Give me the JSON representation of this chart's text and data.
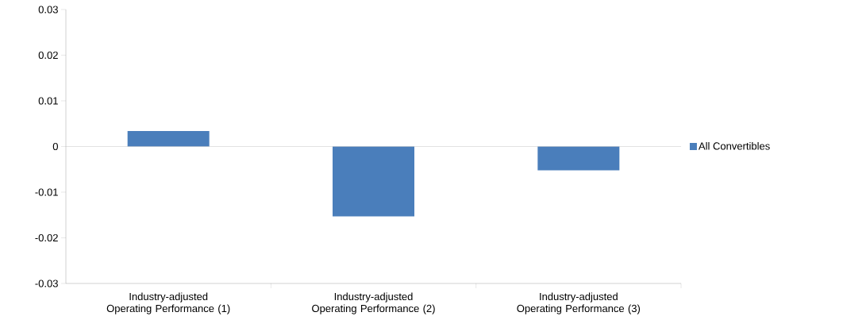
{
  "chart_data": {
    "type": "bar",
    "categories": [
      "Industry-adjusted Operating Performance (1)",
      "Industry-adjusted Operating Performance (2)",
      "Industry-adjusted Operating Performance (3)"
    ],
    "series": [
      {
        "name": "All Convertibles",
        "color": "#4a7ebb",
        "values": [
          0.0034,
          -0.0153,
          -0.0052
        ]
      }
    ],
    "ylim": [
      -0.03,
      0.03
    ],
    "yticks": [
      -0.03,
      -0.02,
      -0.01,
      0,
      0.01,
      0.02,
      0.03
    ],
    "ref_lines": [
      {
        "axis": "y",
        "value": 0,
        "color": "#b3b3b3"
      }
    ],
    "grid": false,
    "legend": "right"
  }
}
